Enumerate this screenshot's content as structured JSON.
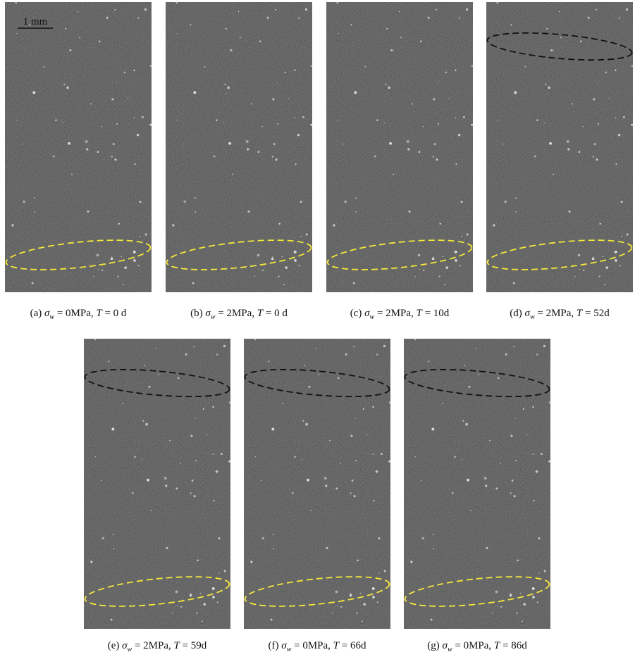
{
  "figure": {
    "scale_bar": "1 mm",
    "panels": [
      {
        "label": "(a)",
        "symbol": "σ",
        "subscript": "w",
        "stress": "= 0MPa,",
        "time_symbol": "T",
        "time": "= 0 d"
      },
      {
        "label": "(b)",
        "symbol": "σ",
        "subscript": "w",
        "stress": "= 2MPa,",
        "time_symbol": "T",
        "time": "= 0 d"
      },
      {
        "label": "(c)",
        "symbol": "σ",
        "subscript": "w",
        "stress": "= 2MPa,",
        "time_symbol": "T",
        "time": "= 10d"
      },
      {
        "label": "(d)",
        "symbol": "σ",
        "subscript": "w",
        "stress": "= 2MPa,",
        "time_symbol": "T",
        "time": "= 52d"
      },
      {
        "label": "(e)",
        "symbol": "σ",
        "subscript": "w",
        "stress": "= 2MPa,",
        "time_symbol": "T",
        "time": "= 59d"
      },
      {
        "label": "(f)",
        "symbol": "σ",
        "subscript": "w",
        "stress": "= 0MPa,",
        "time_symbol": "T",
        "time": "= 66d"
      },
      {
        "label": "(g)",
        "symbol": "σ",
        "subscript": "w",
        "stress": "= 0MPa,",
        "time_symbol": "T",
        "time": "= 86d"
      }
    ]
  }
}
